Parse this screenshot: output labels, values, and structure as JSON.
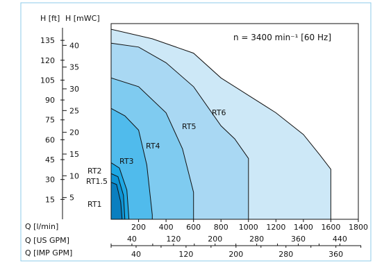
{
  "chart_data": {
    "type": "area",
    "title": "n = 3400 min⁻¹    [60 Hz]",
    "y_axes": [
      {
        "label": "H [ft]",
        "ticks": [
          15,
          30,
          45,
          60,
          75,
          90,
          105,
          120,
          135
        ]
      },
      {
        "label": "H [mWC]",
        "ticks": [
          5,
          10,
          15,
          20,
          25,
          30,
          35,
          40
        ]
      }
    ],
    "x_axes": [
      {
        "label": "Q  [l/min]",
        "ticks": [
          200,
          400,
          600,
          800,
          1000,
          1200,
          1400,
          1600,
          1800
        ]
      },
      {
        "label": "Q  [US GPM]",
        "ticks": [
          40,
          120,
          200,
          280,
          360,
          440
        ]
      },
      {
        "label": "Q  [IMP GPM]",
        "ticks": [
          40,
          120,
          200,
          280,
          360
        ]
      }
    ],
    "xlim": [
      0,
      1800
    ],
    "ylim_mwc": [
      0,
      45
    ],
    "series": [
      {
        "name": "RT6",
        "color": "#cde8f7",
        "points": [
          [
            0,
            43.7
          ],
          [
            300,
            41.5
          ],
          [
            600,
            38.2
          ],
          [
            800,
            32.5
          ],
          [
            1000,
            28.5
          ],
          [
            1200,
            24.5
          ],
          [
            1400,
            19.5
          ],
          [
            1520,
            14.8
          ],
          [
            1600,
            11.5
          ],
          [
            1600,
            0
          ]
        ]
      },
      {
        "name": "RT5",
        "color": "#a9d8f3",
        "points": [
          [
            0,
            40.5
          ],
          [
            200,
            39.6
          ],
          [
            400,
            36.0
          ],
          [
            600,
            30.5
          ],
          [
            800,
            21.5
          ],
          [
            900,
            18.5
          ],
          [
            1000,
            14.0
          ],
          [
            1000,
            0
          ]
        ]
      },
      {
        "name": "RT4",
        "color": "#7fcbf0",
        "points": [
          [
            0,
            32.5
          ],
          [
            200,
            30.5
          ],
          [
            400,
            24.5
          ],
          [
            520,
            16.2
          ],
          [
            600,
            6.2
          ],
          [
            600,
            0
          ]
        ]
      },
      {
        "name": "RT3",
        "color": "#50bbec",
        "points": [
          [
            0,
            25.5
          ],
          [
            100,
            23.8
          ],
          [
            200,
            20.5
          ],
          [
            260,
            12.5
          ],
          [
            300,
            1.0
          ],
          [
            300,
            0
          ]
        ]
      },
      {
        "name": "RT2",
        "color": "#1ea8e4",
        "points": [
          [
            0,
            13.0
          ],
          [
            60,
            11.8
          ],
          [
            115,
            6.7
          ],
          [
            130,
            0
          ]
        ]
      },
      {
        "name": "RT1.5",
        "color": "#0f94d4",
        "points": [
          [
            0,
            10.5
          ],
          [
            50,
            9.8
          ],
          [
            90,
            5.5
          ],
          [
            100,
            0
          ]
        ]
      },
      {
        "name": "RT1",
        "color": "#0a7fc0",
        "points": [
          [
            0,
            8.5
          ],
          [
            40,
            8.0
          ],
          [
            70,
            4.0
          ],
          [
            80,
            0
          ]
        ]
      }
    ],
    "curve_labels": [
      "RT6",
      "RT5",
      "RT4",
      "RT3",
      "RT2",
      "RT1.5",
      "RT1"
    ]
  }
}
